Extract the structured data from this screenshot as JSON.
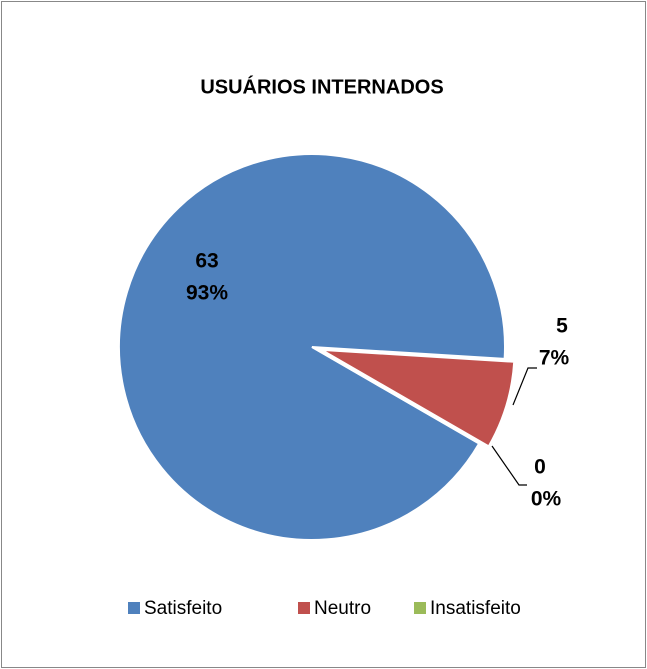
{
  "chart_data": {
    "type": "pie",
    "title": "USUÁRIOS INTERNADOS",
    "categories": [
      "Satisfeito",
      "Neutro",
      "Insatisfeito"
    ],
    "values": [
      63,
      5,
      0
    ],
    "percent_labels": [
      "93%",
      "7%",
      "0%"
    ],
    "colors": [
      "#4f81bd",
      "#c0504d",
      "#9bbb59"
    ],
    "first_slice_angle": 120,
    "legend": "bottom"
  }
}
